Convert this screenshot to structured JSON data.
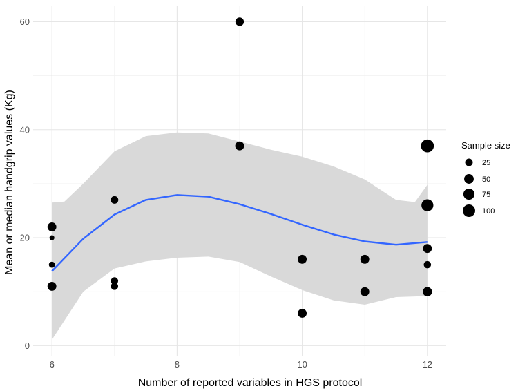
{
  "chart_data": {
    "type": "scatter",
    "xlabel": "Number of reported variables in HGS protocol",
    "ylabel": "Mean or median handgrip values (Kg)",
    "xlim": [
      5.7,
      12.3
    ],
    "ylim": [
      -2,
      63
    ],
    "x_ticks": [
      6,
      8,
      10,
      12
    ],
    "y_ticks": [
      0,
      20,
      40,
      60
    ],
    "x_minor_ticks": [
      7,
      9,
      11
    ],
    "y_minor_ticks": [
      10,
      30,
      50
    ],
    "grid": true,
    "points": [
      {
        "x": 6,
        "y": 22,
        "size": 40
      },
      {
        "x": 6,
        "y": 20,
        "size": 5
      },
      {
        "x": 6,
        "y": 15,
        "size": 12
      },
      {
        "x": 6,
        "y": 11,
        "size": 40
      },
      {
        "x": 7,
        "y": 27,
        "size": 25
      },
      {
        "x": 7,
        "y": 12,
        "size": 22
      },
      {
        "x": 7,
        "y": 11,
        "size": 22
      },
      {
        "x": 9,
        "y": 60,
        "size": 35
      },
      {
        "x": 9,
        "y": 37,
        "size": 40
      },
      {
        "x": 10,
        "y": 16,
        "size": 40
      },
      {
        "x": 10,
        "y": 6,
        "size": 40
      },
      {
        "x": 11,
        "y": 16,
        "size": 40
      },
      {
        "x": 11,
        "y": 10,
        "size": 40
      },
      {
        "x": 12,
        "y": 37,
        "size": 110
      },
      {
        "x": 12,
        "y": 26,
        "size": 90
      },
      {
        "x": 12,
        "y": 18,
        "size": 40
      },
      {
        "x": 12,
        "y": 15,
        "size": 22
      },
      {
        "x": 12,
        "y": 10,
        "size": 45
      }
    ],
    "smooth": {
      "color": "#3366FF",
      "fit": [
        [
          6,
          13.8
        ],
        [
          6.5,
          19.8
        ],
        [
          7,
          24.3
        ],
        [
          7.5,
          27.0
        ],
        [
          8,
          27.9
        ],
        [
          8.5,
          27.6
        ],
        [
          9,
          26.2
        ],
        [
          9.5,
          24.4
        ],
        [
          10,
          22.4
        ],
        [
          10.5,
          20.6
        ],
        [
          11,
          19.3
        ],
        [
          11.5,
          18.7
        ],
        [
          12,
          19.2
        ]
      ],
      "upper": [
        [
          6,
          26.5
        ],
        [
          6.2,
          26.7
        ],
        [
          6.5,
          30.0
        ],
        [
          7,
          36.0
        ],
        [
          7.5,
          38.8
        ],
        [
          8,
          39.5
        ],
        [
          8.5,
          39.3
        ],
        [
          9,
          37.8
        ],
        [
          9.5,
          36.3
        ],
        [
          10,
          35.0
        ],
        [
          10.5,
          33.2
        ],
        [
          11,
          30.8
        ],
        [
          11.3,
          28.5
        ],
        [
          11.5,
          27.0
        ],
        [
          11.8,
          26.6
        ],
        [
          12,
          29.8
        ]
      ],
      "lower": [
        [
          6,
          1.1
        ],
        [
          6.5,
          10.0
        ],
        [
          7,
          14.3
        ],
        [
          7.5,
          15.6
        ],
        [
          8,
          16.3
        ],
        [
          8.5,
          16.5
        ],
        [
          9,
          15.5
        ],
        [
          9.5,
          12.8
        ],
        [
          10,
          10.3
        ],
        [
          10.5,
          8.4
        ],
        [
          11,
          7.6
        ],
        [
          11.5,
          9.0
        ],
        [
          12,
          9.2
        ]
      ],
      "band_color": "#d9d9d9"
    },
    "legend": {
      "title": "Sample size",
      "placement": "right",
      "entries": [
        {
          "label": "25",
          "size": 25
        },
        {
          "label": "50",
          "size": 50
        },
        {
          "label": "75",
          "size": 75
        },
        {
          "label": "100",
          "size": 100
        }
      ]
    },
    "point_color": "#000000"
  }
}
